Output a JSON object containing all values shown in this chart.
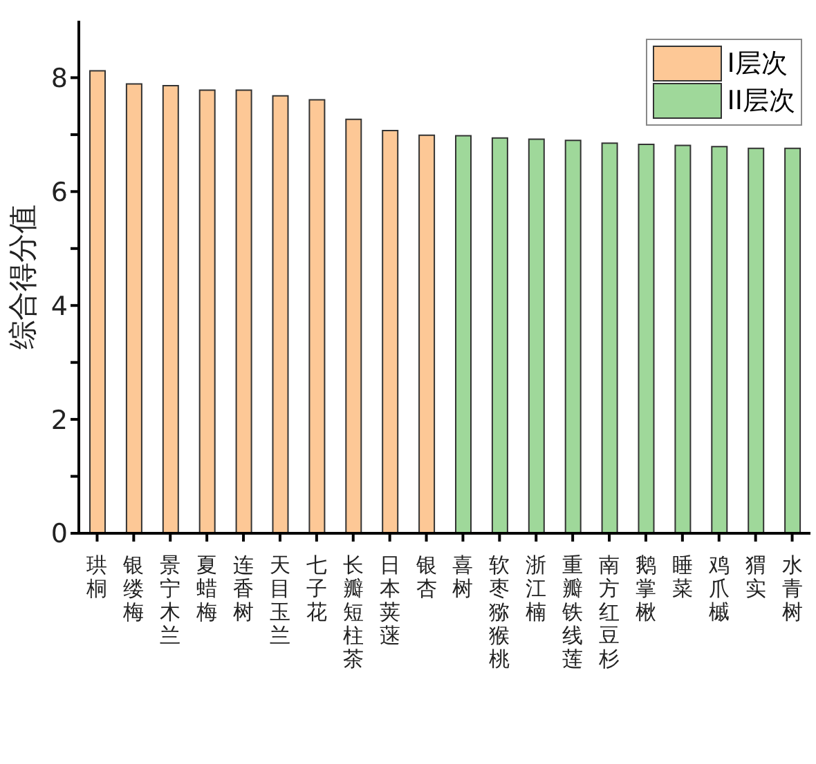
{
  "chart_data": {
    "type": "bar",
    "ylabel": "综合得分值",
    "categories": [
      "珙桐",
      "银缕梅",
      "景宁木兰",
      "夏蜡梅",
      "连香树",
      "天目玉兰",
      "七子花",
      "长瓣短柱茶",
      "日本荚蒾",
      "银杏",
      "喜树",
      "软枣猕猴桃",
      "浙江楠",
      "重瓣铁线莲",
      "南方红豆杉",
      "鹅掌楸",
      "睡菜",
      "鸡爪槭",
      "猬实",
      "水青树"
    ],
    "series": [
      {
        "name": "I层次",
        "color": "#fdc896",
        "values": [
          8.12,
          7.89,
          7.86,
          7.78,
          7.78,
          7.68,
          7.61,
          7.27,
          7.07,
          6.99,
          null,
          null,
          null,
          null,
          null,
          null,
          null,
          null,
          null,
          null
        ]
      },
      {
        "name": "II层次",
        "color": "#9fd89a",
        "values": [
          null,
          null,
          null,
          null,
          null,
          null,
          null,
          null,
          null,
          null,
          6.98,
          6.94,
          6.92,
          6.9,
          6.85,
          6.83,
          6.81,
          6.79,
          6.76,
          6.76
        ]
      }
    ],
    "ylim": [
      0,
      9
    ],
    "yticks": [
      0,
      {
        "value": 1,
        "label": null
      },
      2,
      {
        "value": 3,
        "label": null
      },
      4,
      {
        "value": 5,
        "label": null
      },
      6,
      {
        "value": 7,
        "label": null
      },
      8
    ],
    "legend": "top right"
  }
}
